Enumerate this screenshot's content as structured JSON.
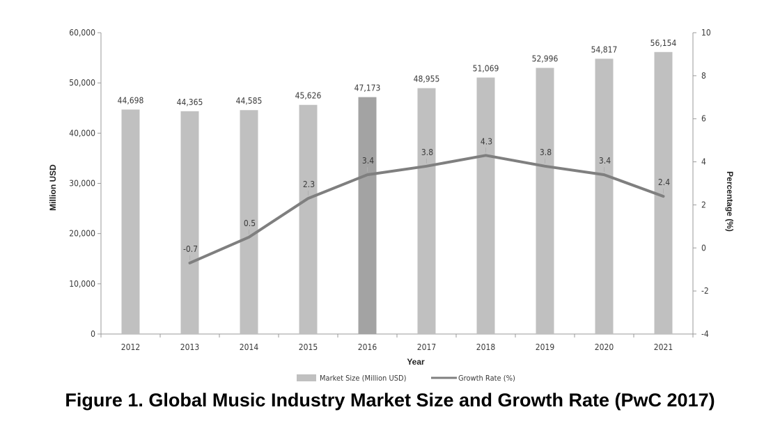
{
  "chart_data": {
    "type": "bar",
    "title": "Figure 1. Global Music Industry Market Size and Growth Rate (PwC 2017)",
    "xlabel": "Year",
    "ylabel": "Million USD",
    "y2label": "Percentage (%)",
    "categories": [
      "2012",
      "2013",
      "2014",
      "2015",
      "2016",
      "2017",
      "2018",
      "2019",
      "2020",
      "2021"
    ],
    "series": [
      {
        "name": "Market Size (Million USD)",
        "type": "bar",
        "axis": "left",
        "values": [
          44698,
          44365,
          44585,
          45626,
          47173,
          48955,
          51069,
          52996,
          54817,
          56154
        ],
        "labels": [
          "44,698",
          "44,365",
          "44,585",
          "45,626",
          "47,173",
          "48,955",
          "51,069",
          "52,996",
          "54,817",
          "56,154"
        ],
        "highlight_index": 4
      },
      {
        "name": "Growth Rate (%)",
        "type": "line",
        "axis": "right",
        "values": [
          null,
          -0.7,
          0.5,
          2.3,
          3.4,
          3.8,
          4.3,
          3.8,
          3.4,
          2.4
        ],
        "labels": [
          "",
          "-0.7",
          "0.5",
          "2.3",
          "3.4",
          "3.8",
          "4.3",
          "3.8",
          "3.4",
          "2.4"
        ]
      }
    ],
    "ylim": [
      0,
      60000
    ],
    "y_ticks": [
      "0",
      "10,000",
      "20,000",
      "30,000",
      "40,000",
      "50,000",
      "60,000"
    ],
    "y2lim": [
      -4,
      10
    ],
    "y2_ticks": [
      "-4",
      "-2",
      "0",
      "2",
      "4",
      "6",
      "8",
      "10"
    ],
    "legend": [
      "Market Size (Million USD)",
      "Growth Rate (%)"
    ],
    "legend_position": "bottom",
    "grid": false,
    "colors": {
      "bar": "#c0c0c0",
      "bar_highlight": "#a3a3a3",
      "line": "#7f7f7f",
      "axis": "#9a9a9a"
    }
  }
}
